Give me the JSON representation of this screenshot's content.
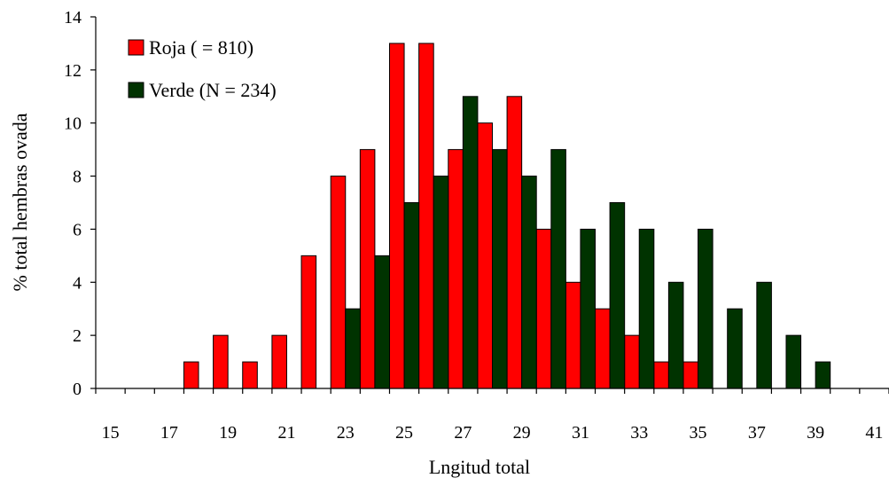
{
  "chart_data": {
    "type": "bar",
    "xlabel": "Lngitud total",
    "ylabel": "% total hembras ovada",
    "ylim": [
      0,
      14
    ],
    "y_ticks": [
      0,
      2,
      4,
      6,
      8,
      10,
      12,
      14
    ],
    "x": [
      15,
      16,
      17,
      18,
      19,
      20,
      21,
      22,
      23,
      24,
      25,
      26,
      27,
      28,
      29,
      30,
      31,
      32,
      33,
      34,
      35,
      36,
      37,
      38,
      39,
      40,
      41
    ],
    "x_tick_labels": [
      15,
      17,
      19,
      21,
      23,
      25,
      27,
      29,
      31,
      33,
      35,
      37,
      39,
      41
    ],
    "grid": false,
    "legend_position": "top-left",
    "series": [
      {
        "name": "Roja ( = 810)",
        "color": "#ff0000",
        "values": [
          0,
          0,
          0,
          1,
          2,
          1,
          2,
          5,
          8,
          9,
          13,
          13,
          9,
          10,
          11,
          6,
          4,
          3,
          2,
          1,
          1,
          0,
          0,
          0,
          0,
          0,
          0
        ]
      },
      {
        "name": "Verde (N = 234)",
        "color": "#003300",
        "values": [
          0,
          0,
          0,
          0,
          0,
          0,
          0,
          0,
          3,
          5,
          7,
          8,
          11,
          9,
          8,
          9,
          6,
          7,
          6,
          4,
          6,
          3,
          4,
          2,
          1,
          0,
          0
        ]
      }
    ]
  }
}
